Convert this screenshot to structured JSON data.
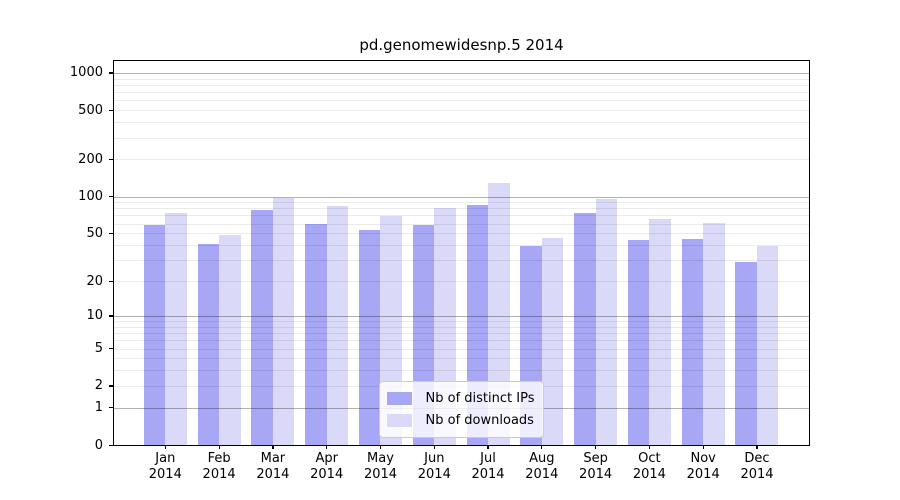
{
  "chart_data": {
    "type": "bar",
    "title": "pd.genomewidesnp.5 2014",
    "categories": [
      "Jan",
      "Feb",
      "Mar",
      "Apr",
      "May",
      "Jun",
      "Jul",
      "Aug",
      "Sep",
      "Oct",
      "Nov",
      "Dec"
    ],
    "x_tick_year": "2014",
    "series": [
      {
        "name": "Nb of distinct IPs",
        "color": "#a7a7f6",
        "values": [
          58,
          41,
          78,
          60,
          53,
          58,
          85,
          39,
          73,
          44,
          45,
          29
        ]
      },
      {
        "name": "Nb of downloads",
        "color": "#dadaf8",
        "values": [
          74,
          48,
          97,
          83,
          69,
          81,
          130,
          46,
          96,
          65,
          61,
          39
        ]
      }
    ],
    "y_scale": "log1p",
    "ylim": [
      0,
      1250
    ],
    "y_tick_values": [
      1000,
      500,
      200,
      100,
      50,
      20,
      10,
      5,
      2,
      1,
      0
    ],
    "y_tick_labels": [
      "1000",
      "500",
      "200",
      "100",
      "50",
      "20",
      "10",
      "5",
      "2",
      "1",
      "0"
    ],
    "grid": "major on 1/10/100/1000, faint log minors",
    "legend_position": "lower center"
  },
  "colors": {
    "background": "#ffffff",
    "axis": "#000000",
    "grid_major": "rgba(0,0,0,0.30)",
    "grid_minor": "rgba(0,0,0,0.08)",
    "distinct_ips_bar": "#a7a7f6",
    "downloads_bar": "#dadaf8"
  }
}
